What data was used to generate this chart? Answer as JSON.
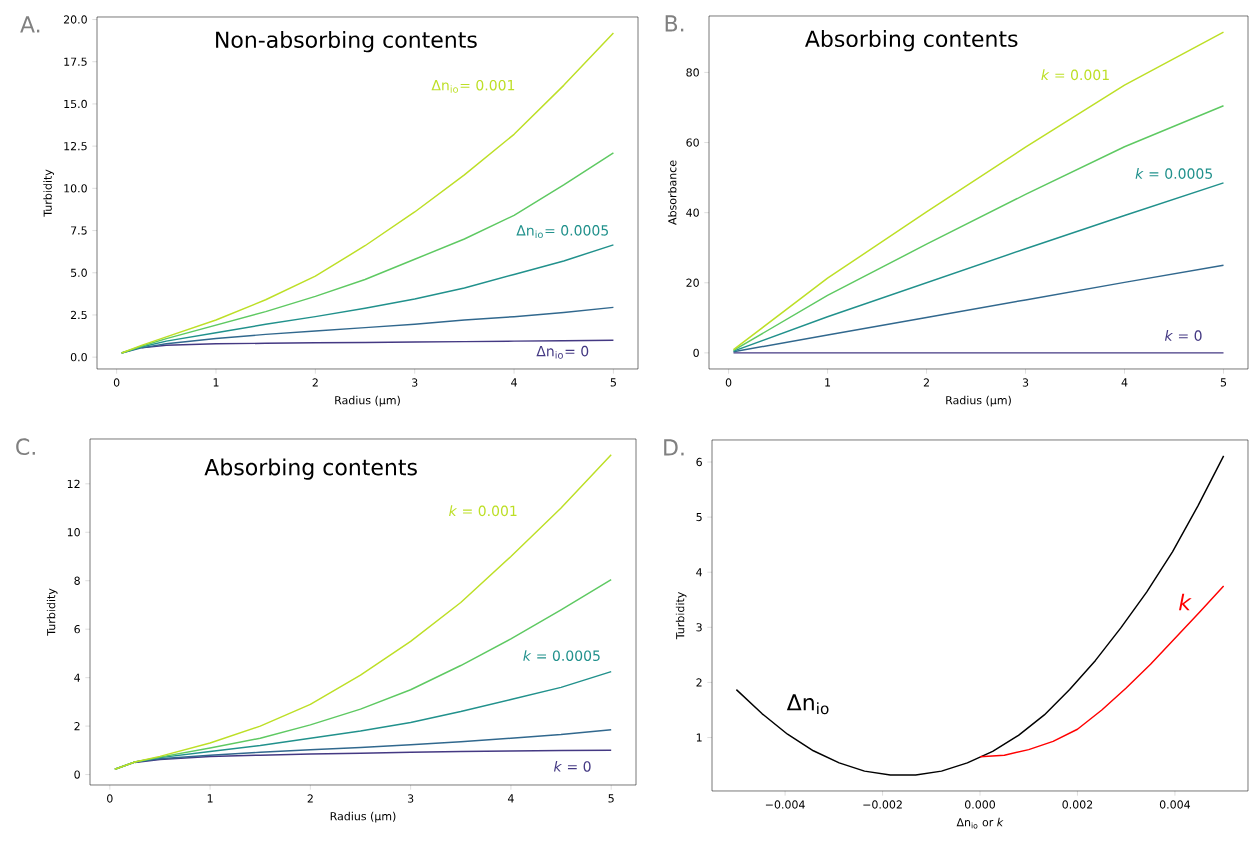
{
  "chart_data": [
    {
      "type": "line",
      "title": "Non-absorbing contents",
      "xlabel": "Radius (μm)",
      "ylabel": "Turbidity",
      "annotations": [
        "A."
      ],
      "x": [
        0.05,
        0.25,
        0.5,
        1,
        1.5,
        2,
        2.5,
        3,
        3.5,
        4,
        4.5,
        5
      ],
      "xlim": [
        -0.1975,
        5.2475
      ],
      "ylim": [
        -0.7,
        20.15
      ],
      "xticks": [
        0,
        1,
        2,
        3,
        4,
        5
      ],
      "yticks": [
        {
          "value": 0,
          "label": "0.0"
        },
        {
          "value": 2.5,
          "label": "2.5"
        },
        {
          "value": 5,
          "label": "5.0"
        },
        {
          "value": 7.5,
          "label": "7.5"
        },
        {
          "value": 10,
          "label": "10.0"
        },
        {
          "value": 12.5,
          "label": "12.5"
        },
        {
          "value": 15,
          "label": "15.0"
        },
        {
          "value": 17.5,
          "label": "17.5"
        },
        {
          "value": 20,
          "label": "20.0"
        }
      ],
      "series": [
        {
          "name": "Δn$_{io}$= 0",
          "color": "#443983",
          "values": [
            null,
            0.55,
            0.7,
            0.8,
            0.82,
            0.85,
            0.87,
            0.9,
            0.92,
            0.95,
            0.97,
            1.0
          ]
        },
        {
          "color": "#31688e",
          "values": [
            0.25,
            0.55,
            0.8,
            1.1,
            1.35,
            1.55,
            1.75,
            1.95,
            2.2,
            2.4,
            2.65,
            2.95
          ]
        },
        {
          "name": "Δn$_{io}$= 0.0005",
          "color": "#21918c",
          "values": [
            0.25,
            0.6,
            0.95,
            1.45,
            1.95,
            2.4,
            2.9,
            3.45,
            4.1,
            4.9,
            5.7,
            6.65
          ]
        },
        {
          "color": "#5ec962",
          "values": [
            0.25,
            0.65,
            1.1,
            1.9,
            2.7,
            3.6,
            4.6,
            5.8,
            7.0,
            8.4,
            10.2,
            12.1
          ]
        },
        {
          "name": "Δn$_{io}$= 0.001",
          "color": "#bddf26",
          "values": [
            0.25,
            0.7,
            1.2,
            2.2,
            3.4,
            4.8,
            6.6,
            8.6,
            10.8,
            13.2,
            16.1,
            19.2
          ]
        }
      ]
    },
    {
      "type": "line",
      "title": "Absorbing contents",
      "xlabel": "Radius (μm)",
      "ylabel": "Absorbance",
      "annotations": [
        "B."
      ],
      "x": [
        0.05,
        1,
        2,
        3,
        4,
        5
      ],
      "xlim": [
        -0.1975,
        5.2475
      ],
      "ylim": [
        -4.6,
        96.1
      ],
      "xticks": [
        0,
        1,
        2,
        3,
        4,
        5
      ],
      "yticks": [
        0,
        20,
        40,
        60,
        80
      ],
      "series": [
        {
          "name": "*k* = 0",
          "color": "#443983",
          "values": [
            0,
            0,
            0,
            0,
            0,
            0
          ]
        },
        {
          "color": "#31688e",
          "values": [
            0.3,
            5.1,
            10.1,
            15.1,
            20.1,
            25
          ]
        },
        {
          "name": "*k* = 0.0005",
          "color": "#21918c",
          "values": [
            0.5,
            10.3,
            20,
            29.7,
            39.2,
            48.5
          ]
        },
        {
          "color": "#5ec962",
          "values": [
            0.7,
            16.4,
            31,
            45.2,
            58.8,
            70.5
          ]
        },
        {
          "name": "*k* = 0.001",
          "color": "#bddf26",
          "values": [
            0.9,
            21.3,
            40.2,
            58.7,
            76.4,
            91.5
          ]
        }
      ]
    },
    {
      "type": "line",
      "title": "Absorbing contents",
      "xlabel": "Radius (μm)",
      "ylabel": "Turbidity",
      "annotations": [
        "C."
      ],
      "x": [
        0.05,
        0.25,
        0.5,
        1,
        1.5,
        2,
        2.5,
        3,
        3.5,
        4,
        4.5,
        5
      ],
      "xlim": [
        -0.1975,
        5.2475
      ],
      "ylim": [
        -0.43,
        13.85
      ],
      "xticks": [
        0,
        1,
        2,
        3,
        4,
        5
      ],
      "yticks": [
        0,
        2,
        4,
        6,
        8,
        10,
        12
      ],
      "series": [
        {
          "name": "*k* = 0",
          "color": "#443983",
          "values": [
            null,
            0.5,
            0.62,
            0.75,
            0.8,
            0.85,
            0.88,
            0.92,
            0.95,
            0.97,
            0.99,
            1.0
          ]
        },
        {
          "color": "#31688e",
          "values": [
            0.22,
            0.52,
            0.65,
            0.8,
            0.92,
            1.02,
            1.12,
            1.23,
            1.35,
            1.5,
            1.65,
            1.85
          ]
        },
        {
          "name": "*k* = 0.0005",
          "color": "#21918c",
          "values": [
            0.22,
            0.52,
            0.7,
            0.95,
            1.2,
            1.5,
            1.8,
            2.15,
            2.6,
            3.1,
            3.6,
            4.25
          ]
        },
        {
          "color": "#5ec962",
          "values": [
            0.22,
            0.52,
            0.72,
            1.1,
            1.5,
            2.05,
            2.7,
            3.5,
            4.5,
            5.6,
            6.8,
            8.05
          ]
        },
        {
          "name": "*k* = 0.001",
          "color": "#bddf26",
          "values": [
            0.22,
            0.52,
            0.75,
            1.3,
            2.0,
            2.9,
            4.1,
            5.5,
            7.1,
            9.0,
            11.0,
            13.2
          ]
        }
      ]
    },
    {
      "type": "line",
      "xlabel": "Δn$_{io}$ or *k*",
      "ylabel": "Turbidity",
      "annotations": [
        "D."
      ],
      "xlim": [
        -0.0055,
        0.0055
      ],
      "ylim": [
        0.03,
        6.4
      ],
      "xticks": [
        {
          "value": -0.004,
          "label": "−0.004"
        },
        {
          "value": -0.002,
          "label": "−0.002"
        },
        {
          "value": 0,
          "label": "0.000"
        },
        {
          "value": 0.002,
          "label": "0.002"
        },
        {
          "value": 0.004,
          "label": "0.004"
        }
      ],
      "yticks": [
        1,
        2,
        3,
        4,
        5,
        6
      ],
      "series": [
        {
          "name": "Δn$_{io}$",
          "color": "#000000",
          "x": [
            -0.005,
            -0.00447,
            -0.00395,
            -0.00342,
            -0.00289,
            -0.00237,
            -0.00184,
            -0.00132,
            -0.00079,
            -0.00026,
            0.00026,
            0.00079,
            0.00132,
            0.00184,
            0.00237,
            0.00289,
            0.00342,
            0.00395,
            0.00447,
            0.005
          ],
          "values": [
            1.87,
            1.43,
            1.06,
            0.76,
            0.54,
            0.39,
            0.32,
            0.32,
            0.39,
            0.54,
            0.75,
            1.04,
            1.41,
            1.87,
            2.4,
            2.99,
            3.64,
            4.37,
            5.2,
            6.11
          ]
        },
        {
          "name": "*k*",
          "color": "#ff0000",
          "x": [
            0,
            0.0005,
            0.001,
            0.0015,
            0.002,
            0.0025,
            0.003,
            0.0035,
            0.004,
            0.0045,
            0.005
          ],
          "values": [
            0.65,
            0.68,
            0.78,
            0.93,
            1.15,
            1.5,
            1.9,
            2.33,
            2.8,
            3.27,
            3.75
          ]
        }
      ]
    }
  ]
}
